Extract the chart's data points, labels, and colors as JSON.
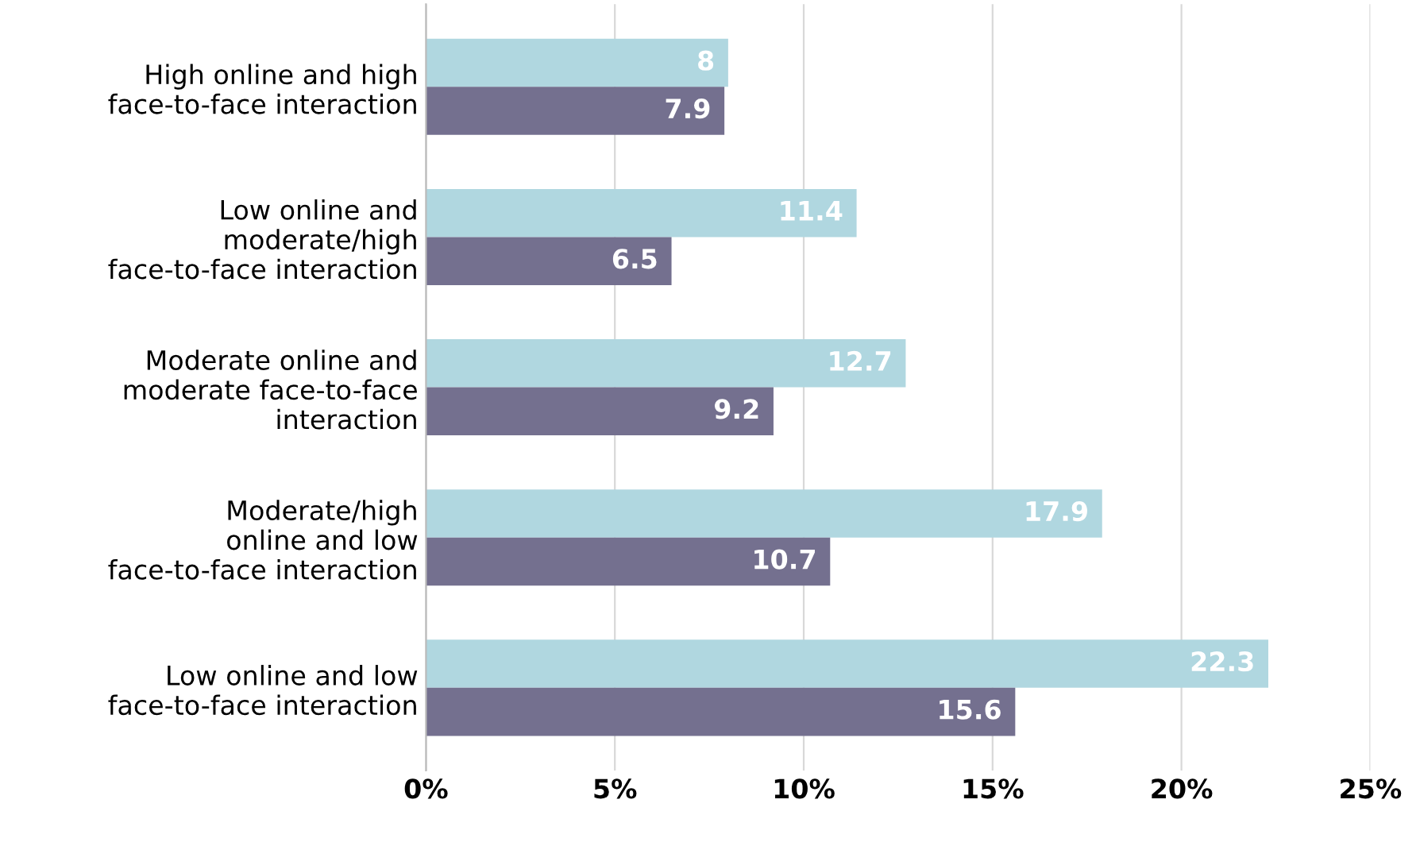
{
  "chart_data": {
    "type": "bar",
    "orientation": "horizontal",
    "categories": [
      "High online and high\nface-to-face interaction",
      "Low online and\nmoderate/high\nface-to-face interaction",
      "Moderate online and\nmoderate face-to-face\ninteraction",
      "Moderate/high\nonline and low\nface-to-face interaction",
      "Low online and low\nface-to-face interaction"
    ],
    "series": [
      {
        "color": "#b0d7e0",
        "values": [
          8,
          11.4,
          12.7,
          17.9,
          22.3
        ]
      },
      {
        "color": "#74708f",
        "values": [
          7.9,
          6.5,
          9.2,
          10.7,
          15.6
        ]
      }
    ],
    "xlim": [
      0,
      25
    ],
    "xticks": [
      {
        "value": 0,
        "label": "0%"
      },
      {
        "value": 5,
        "label": "5%"
      },
      {
        "value": 10,
        "label": "10%"
      },
      {
        "value": 15,
        "label": "15%"
      },
      {
        "value": 20,
        "label": "20%"
      },
      {
        "value": 25,
        "label": "25%"
      }
    ],
    "grid": "x",
    "data_labels": true
  }
}
